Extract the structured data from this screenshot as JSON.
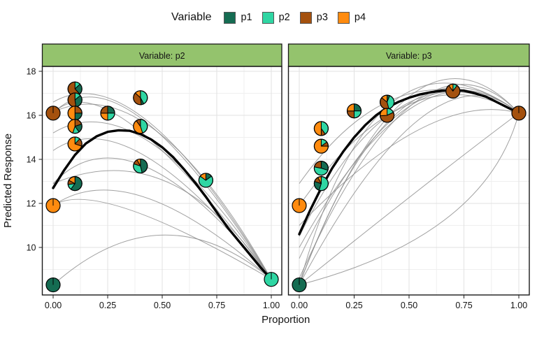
{
  "legend": {
    "title": "Variable",
    "items": [
      {
        "key": "p1",
        "label": "p1"
      },
      {
        "key": "p2",
        "label": "p2"
      },
      {
        "key": "p3",
        "label": "p3"
      },
      {
        "key": "p4",
        "label": "p4"
      }
    ]
  },
  "colors": {
    "p1": "#156C52",
    "p2": "#2FD6A3",
    "p3": "#A4510E",
    "p4": "#FF8B0F",
    "strip_bg": "#94C36D",
    "strip_border": "#1a1a1a",
    "panel_border": "#1a1a1a",
    "grid_major": "#E2E2E2",
    "grid_minor": "#EFEFEF",
    "thin_line": "#8a8a8a",
    "mean_line": "#000000",
    "tick": "#222222"
  },
  "axes": {
    "x_title": "Proportion",
    "y_title": "Predicted Response",
    "x_tick_labels": [
      "0.00",
      "0.25",
      "0.50",
      "0.75",
      "1.00"
    ],
    "x_tick_values": [
      0,
      0.25,
      0.5,
      0.75,
      1
    ],
    "x_minor_values": [
      0.125,
      0.375,
      0.625,
      0.875
    ],
    "y_tick_labels": [
      "18",
      "16",
      "14",
      "12",
      "10"
    ],
    "y_tick_values": [
      18,
      16,
      14,
      12,
      10
    ],
    "y_minor_values": [
      17,
      15,
      13,
      11,
      9
    ]
  },
  "chart_data": {
    "type": "scatter",
    "subtype": "faceted scatter of pie-glyph points with spaghetti prediction curves and bold mean curve",
    "xlabel": "Proportion",
    "ylabel": "Predicted Response",
    "xlim": [
      -0.05,
      1.05
    ],
    "ylim": [
      7.8,
      18.2
    ],
    "grid": true,
    "legend_position": "top",
    "facets": [
      {
        "strip": "Variable: p2",
        "mean_curve": [
          [
            0,
            12.7
          ],
          [
            0.05,
            13.5
          ],
          [
            0.1,
            14.2
          ],
          [
            0.15,
            14.72
          ],
          [
            0.2,
            15.05
          ],
          [
            0.25,
            15.25
          ],
          [
            0.3,
            15.32
          ],
          [
            0.35,
            15.3
          ],
          [
            0.4,
            15.15
          ],
          [
            0.45,
            14.9
          ],
          [
            0.5,
            14.55
          ],
          [
            0.55,
            14.1
          ],
          [
            0.6,
            13.55
          ],
          [
            0.65,
            12.95
          ],
          [
            0.7,
            12.3
          ],
          [
            0.75,
            11.6
          ],
          [
            0.8,
            10.9
          ],
          [
            0.85,
            10.3
          ],
          [
            0.9,
            9.7
          ],
          [
            0.95,
            9.1
          ],
          [
            1,
            8.55
          ]
        ],
        "thin_curves": [
          {
            "start": [
              0,
              16.1
            ],
            "ctrl": [
              0.32,
              19.3
            ],
            "end": [
              1,
              8.55
            ]
          },
          {
            "start": [
              0,
              16.1
            ],
            "ctrl": [
              0.25,
              18.6
            ],
            "end": [
              1,
              8.55
            ]
          },
          {
            "start": [
              0,
              16.6
            ],
            "ctrl": [
              0.38,
              18.8
            ],
            "end": [
              1,
              8.55
            ]
          },
          {
            "start": [
              0,
              16.15
            ],
            "ctrl": [
              0.45,
              18.2
            ],
            "end": [
              1,
              8.55
            ]
          },
          {
            "start": [
              0,
              15.2
            ],
            "ctrl": [
              0.4,
              17.6
            ],
            "end": [
              1,
              8.55
            ]
          },
          {
            "start": [
              0,
              14.4
            ],
            "ctrl": [
              0.35,
              16.8
            ],
            "end": [
              1,
              8.55
            ]
          },
          {
            "start": [
              0,
              12.9
            ],
            "ctrl": [
              0.35,
              16.6
            ],
            "end": [
              1,
              8.55
            ]
          },
          {
            "start": [
              0,
              12.9
            ],
            "ctrl": [
              0.55,
              15.2
            ],
            "end": [
              1,
              8.55
            ]
          },
          {
            "start": [
              0,
              11.9
            ],
            "ctrl": [
              0.35,
              14.3
            ],
            "end": [
              1,
              8.55
            ]
          },
          {
            "start": [
              0,
              11.9
            ],
            "ctrl": [
              0.2,
              13.2
            ],
            "end": [
              1,
              8.55
            ]
          },
          {
            "start": [
              0,
              8.3
            ],
            "ctrl": [
              0.5,
              12.7
            ],
            "end": [
              1,
              8.55
            ]
          }
        ],
        "pies": [
          {
            "x": 0.0,
            "y": 16.1,
            "slices": [
              [
                "p3",
                1.0
              ]
            ]
          },
          {
            "x": 0.1,
            "y": 17.2,
            "slices": [
              [
                "p2",
                0.13
              ],
              [
                "p1",
                0.25
              ],
              [
                "p3",
                0.62
              ]
            ]
          },
          {
            "x": 0.1,
            "y": 16.7,
            "slices": [
              [
                "p2",
                0.14
              ],
              [
                "p1",
                0.34
              ],
              [
                "p3",
                0.52
              ]
            ]
          },
          {
            "x": 0.1,
            "y": 16.1,
            "slices": [
              [
                "p3",
                0.25
              ],
              [
                "p1",
                0.25
              ],
              [
                "p4",
                0.5
              ]
            ]
          },
          {
            "x": 0.1,
            "y": 15.5,
            "slices": [
              [
                "p3",
                0.2
              ],
              [
                "p1",
                0.2
              ],
              [
                "p2",
                0.15
              ],
              [
                "p4",
                0.45
              ]
            ]
          },
          {
            "x": 0.1,
            "y": 14.7,
            "slices": [
              [
                "p2",
                0.12
              ],
              [
                "p3",
                0.18
              ],
              [
                "p4",
                0.7
              ]
            ]
          },
          {
            "x": 0.25,
            "y": 16.1,
            "slices": [
              [
                "p1",
                0.25
              ],
              [
                "p2",
                0.25
              ],
              [
                "p4",
                0.25
              ],
              [
                "p3",
                0.25
              ]
            ]
          },
          {
            "x": 0.4,
            "y": 16.8,
            "slices": [
              [
                "p2",
                0.42
              ],
              [
                "p1",
                0.06
              ],
              [
                "p3",
                0.39
              ],
              [
                "p4",
                0.13
              ]
            ]
          },
          {
            "x": 0.4,
            "y": 15.5,
            "slices": [
              [
                "p2",
                0.45
              ],
              [
                "p4",
                0.45
              ],
              [
                "p3",
                0.1
              ]
            ]
          },
          {
            "x": 0.4,
            "y": 13.7,
            "slices": [
              [
                "p1",
                0.46
              ],
              [
                "p2",
                0.34
              ],
              [
                "p3",
                0.12
              ],
              [
                "p4",
                0.08
              ]
            ]
          },
          {
            "x": 0.1,
            "y": 12.9,
            "slices": [
              [
                "p1",
                0.6
              ],
              [
                "p2",
                0.13
              ],
              [
                "p3",
                0.1
              ],
              [
                "p4",
                0.17
              ]
            ]
          },
          {
            "x": 0.0,
            "y": 11.9,
            "slices": [
              [
                "p4",
                1.0
              ]
            ]
          },
          {
            "x": 0.7,
            "y": 13.05,
            "slices": [
              [
                "p1",
                0.15
              ],
              [
                "p2",
                0.7
              ],
              [
                "p4",
                0.15
              ]
            ]
          },
          {
            "x": 0.0,
            "y": 8.3,
            "slices": [
              [
                "p1",
                1.0
              ]
            ]
          },
          {
            "x": 1.0,
            "y": 8.55,
            "slices": [
              [
                "p2",
                1.0
              ]
            ]
          }
        ]
      },
      {
        "strip": "Variable: p3",
        "mean_curve": [
          [
            0,
            10.6
          ],
          [
            0.05,
            11.7
          ],
          [
            0.1,
            12.7
          ],
          [
            0.15,
            13.6
          ],
          [
            0.2,
            14.35
          ],
          [
            0.25,
            15.0
          ],
          [
            0.3,
            15.55
          ],
          [
            0.35,
            16.0
          ],
          [
            0.4,
            16.35
          ],
          [
            0.45,
            16.6
          ],
          [
            0.5,
            16.8
          ],
          [
            0.55,
            16.95
          ],
          [
            0.6,
            17.05
          ],
          [
            0.65,
            17.12
          ],
          [
            0.7,
            17.15
          ],
          [
            0.75,
            17.12
          ],
          [
            0.8,
            17.0
          ],
          [
            0.85,
            16.85
          ],
          [
            0.9,
            16.6
          ],
          [
            0.95,
            16.35
          ],
          [
            1,
            16.1
          ]
        ],
        "thin_curves": [
          {
            "start": [
              0,
              8.3
            ],
            "ctrl": [
              0.5,
              21.5
            ],
            "end": [
              1,
              16.1
            ]
          },
          {
            "start": [
              0,
              8.3
            ],
            "ctrl": [
              0.45,
              20.5
            ],
            "end": [
              1,
              16.1
            ]
          },
          {
            "start": [
              0,
              8.6
            ],
            "ctrl": [
              0.55,
              20.8
            ],
            "end": [
              1,
              16.1
            ]
          },
          {
            "start": [
              0,
              9.5
            ],
            "ctrl": [
              0.5,
              20.0
            ],
            "end": [
              1,
              16.1
            ]
          },
          {
            "start": [
              0,
              10.5
            ],
            "ctrl": [
              0.45,
              19.6
            ],
            "end": [
              1,
              16.1
            ]
          },
          {
            "start": [
              0,
              11.9
            ],
            "ctrl": [
              0.5,
              19.0
            ],
            "end": [
              1,
              16.1
            ]
          },
          {
            "start": [
              0,
              12.9
            ],
            "ctrl": [
              0.45,
              19.3
            ],
            "end": [
              1,
              16.1
            ]
          },
          {
            "start": [
              0,
              8.3
            ],
            "ctrl": [
              0.6,
              19.5
            ],
            "end": [
              1,
              16.1
            ]
          },
          {
            "start": [
              0,
              10.0
            ],
            "ctrl": [
              0.55,
              19.8
            ],
            "end": [
              1,
              16.1
            ]
          },
          {
            "start": [
              0,
              8.3
            ],
            "ctrl": [
              0.35,
              21.0
            ],
            "end": [
              1,
              16.1
            ]
          },
          {
            "start": [
              0,
              11.0
            ],
            "ctrl": [
              0.6,
              17.2
            ],
            "end": [
              1,
              16.1
            ]
          },
          {
            "start": [
              0,
              8.3
            ],
            "ctrl": [
              0.65,
              13.5
            ],
            "end": [
              1,
              16.1
            ]
          },
          {
            "start": [
              0,
              8.3
            ],
            "ctrl": [
              0.85,
              10.5
            ],
            "end": [
              1,
              16.1
            ]
          }
        ],
        "pies": [
          {
            "x": 0.25,
            "y": 16.2,
            "slices": [
              [
                "p1",
                0.25
              ],
              [
                "p2",
                0.25
              ],
              [
                "p3",
                0.25
              ],
              [
                "p4",
                0.25
              ]
            ]
          },
          {
            "x": 0.4,
            "y": 16.6,
            "slices": [
              [
                "p1",
                0.06
              ],
              [
                "p2",
                0.4
              ],
              [
                "p3",
                0.4
              ],
              [
                "p4",
                0.14
              ]
            ]
          },
          {
            "x": 0.4,
            "y": 16.0,
            "slices": [
              [
                "p2",
                0.18
              ],
              [
                "p3",
                0.56
              ],
              [
                "p4",
                0.26
              ]
            ]
          },
          {
            "x": 0.1,
            "y": 15.4,
            "slices": [
              [
                "p2",
                0.4
              ],
              [
                "p3",
                0.1
              ],
              [
                "p4",
                0.5
              ]
            ]
          },
          {
            "x": 0.1,
            "y": 14.6,
            "slices": [
              [
                "p2",
                0.15
              ],
              [
                "p3",
                0.1
              ],
              [
                "p4",
                0.75
              ]
            ]
          },
          {
            "x": 0.1,
            "y": 13.6,
            "slices": [
              [
                "p1",
                0.3
              ],
              [
                "p2",
                0.48
              ],
              [
                "p3",
                0.22
              ]
            ]
          },
          {
            "x": 0.1,
            "y": 12.9,
            "slices": [
              [
                "p2",
                0.55
              ],
              [
                "p1",
                0.25
              ],
              [
                "p3",
                0.12
              ],
              [
                "p4",
                0.08
              ]
            ]
          },
          {
            "x": 0.0,
            "y": 11.9,
            "slices": [
              [
                "p4",
                1.0
              ]
            ]
          },
          {
            "x": 0.7,
            "y": 17.1,
            "slices": [
              [
                "p2",
                0.1
              ],
              [
                "p3",
                0.8
              ],
              [
                "p4",
                0.1
              ]
            ]
          },
          {
            "x": 1.0,
            "y": 16.1,
            "slices": [
              [
                "p3",
                1.0
              ]
            ]
          },
          {
            "x": 0.0,
            "y": 8.3,
            "slices": [
              [
                "p1",
                1.0
              ]
            ]
          }
        ]
      }
    ]
  }
}
